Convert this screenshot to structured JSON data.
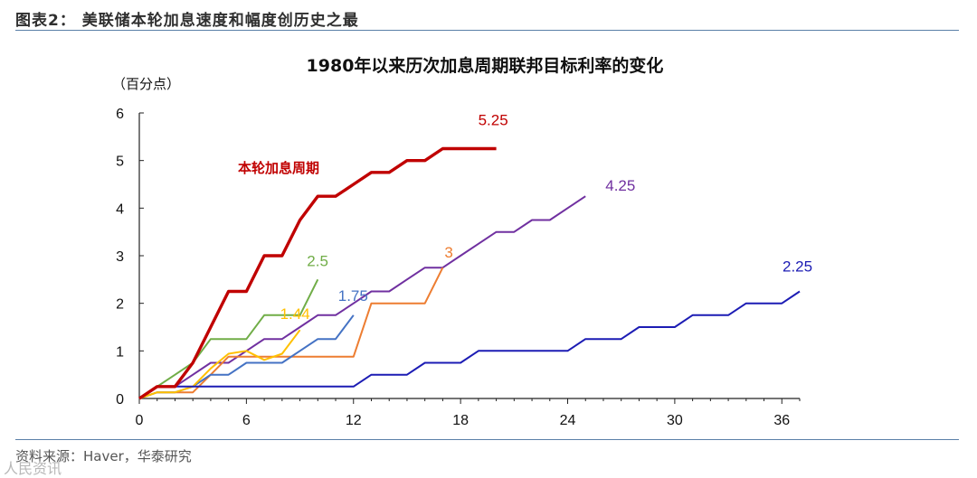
{
  "header": "图表2：  美联储本轮加息速度和幅度创历史之最",
  "footer": "资料来源：Haver，华泰研究",
  "watermark": "人民资讯",
  "chart_data": {
    "type": "line",
    "title": "1980年以来历次加息周期联邦目标利率的变化",
    "unit_label": "（百分点）",
    "xlim": [
      0,
      37
    ],
    "ylim": [
      0,
      6
    ],
    "x_ticks": [
      0,
      6,
      12,
      18,
      24,
      30,
      36
    ],
    "y_ticks": [
      0,
      1,
      2,
      3,
      4,
      5,
      6
    ],
    "annotation": {
      "text": "本轮加息周期",
      "color": "#c00000"
    },
    "series": [
      {
        "color": "#c00000",
        "end_label": "5.25",
        "highlight": true,
        "x": [
          0,
          1,
          2,
          3,
          4,
          5,
          6,
          7,
          8,
          9,
          10,
          11,
          12,
          13,
          14,
          15,
          16,
          17,
          18,
          19,
          20
        ],
        "y": [
          0,
          0.25,
          0.25,
          0.75,
          1.5,
          2.25,
          2.25,
          3.0,
          3.0,
          3.75,
          4.25,
          4.25,
          4.5,
          4.75,
          4.75,
          5.0,
          5.0,
          5.25,
          5.25,
          5.25,
          5.25
        ]
      },
      {
        "color": "#7030a0",
        "end_label": "4.25",
        "x": [
          0,
          1,
          2,
          3,
          4,
          5,
          6,
          7,
          8,
          9,
          10,
          11,
          12,
          13,
          14,
          15,
          16,
          17,
          18,
          19,
          20,
          21,
          22,
          23,
          24,
          25
        ],
        "y": [
          0,
          0.25,
          0.25,
          0.5,
          0.75,
          0.75,
          1.0,
          1.25,
          1.25,
          1.5,
          1.75,
          1.75,
          2.0,
          2.25,
          2.25,
          2.5,
          2.75,
          2.75,
          3.0,
          3.25,
          3.5,
          3.5,
          3.75,
          3.75,
          4.0,
          4.25
        ]
      },
      {
        "color": "#ed7d31",
        "end_label": "3",
        "x": [
          0,
          1,
          2,
          3,
          4,
          5,
          6,
          7,
          8,
          9,
          10,
          11,
          12,
          13,
          14,
          15,
          16,
          17
        ],
        "y": [
          0,
          0.13,
          0.13,
          0.13,
          0.5,
          0.88,
          0.88,
          0.88,
          0.88,
          0.88,
          0.88,
          0.88,
          0.88,
          2.0,
          2.0,
          2.0,
          2.0,
          2.75
        ]
      },
      {
        "color": "#70ad47",
        "end_label": "2.5",
        "x": [
          0,
          1,
          2,
          3,
          4,
          5,
          6,
          7,
          8,
          9,
          10
        ],
        "y": [
          0,
          0.25,
          0.5,
          0.75,
          1.25,
          1.25,
          1.25,
          1.75,
          1.75,
          1.75,
          2.5
        ]
      },
      {
        "color": "#4472c4",
        "end_label": "1.75",
        "x": [
          0,
          1,
          2,
          3,
          4,
          5,
          6,
          7,
          8,
          9,
          10,
          11,
          12
        ],
        "y": [
          0,
          0.13,
          0.13,
          0.25,
          0.5,
          0.5,
          0.75,
          0.75,
          0.75,
          1.0,
          1.25,
          1.25,
          1.75
        ]
      },
      {
        "color": "#ffc000",
        "end_label": "1.44",
        "x": [
          0,
          1,
          2,
          3,
          4,
          5,
          6,
          7,
          8,
          9
        ],
        "y": [
          0,
          0.13,
          0.13,
          0.25,
          0.63,
          0.94,
          1.0,
          0.81,
          0.94,
          1.44
        ]
      },
      {
        "color": "#1c1cb4",
        "end_label": "2.25",
        "x": [
          0,
          1,
          2,
          3,
          4,
          5,
          6,
          7,
          8,
          9,
          10,
          11,
          12,
          13,
          14,
          15,
          16,
          17,
          18,
          19,
          20,
          21,
          22,
          23,
          24,
          25,
          26,
          27,
          28,
          29,
          30,
          31,
          32,
          33,
          34,
          35,
          36,
          37
        ],
        "y": [
          0,
          0.25,
          0.25,
          0.25,
          0.25,
          0.25,
          0.25,
          0.25,
          0.25,
          0.25,
          0.25,
          0.25,
          0.25,
          0.5,
          0.5,
          0.5,
          0.75,
          0.75,
          0.75,
          1.0,
          1.0,
          1.0,
          1.0,
          1.0,
          1.0,
          1.25,
          1.25,
          1.25,
          1.5,
          1.5,
          1.5,
          1.75,
          1.75,
          1.75,
          2.0,
          2.0,
          2.0,
          2.25
        ]
      }
    ]
  }
}
